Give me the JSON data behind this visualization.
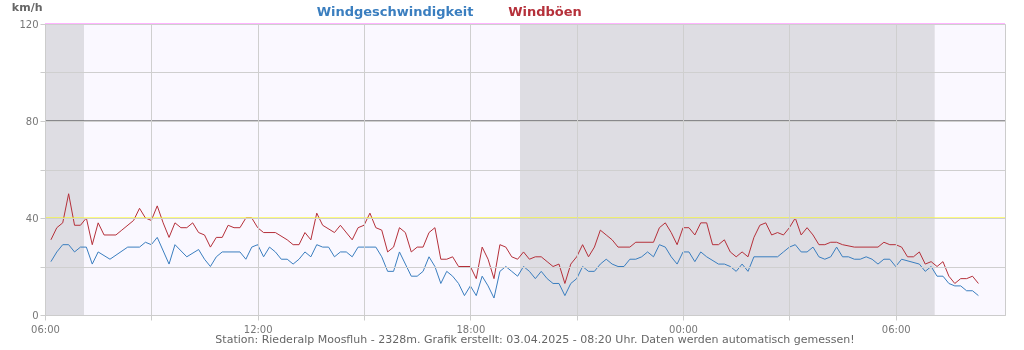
{
  "chart_data": {
    "type": "line",
    "ylabel": "km/h",
    "legend": "top",
    "annotations": [
      "Station: Riederalp Moosfluh - 2328m. Grafik erstellt: 03.04.2025 - 08:20 Uhr. Daten werden automatisch gemessen!"
    ],
    "xlim": [
      "2025-04-02T06:00",
      "2025-04-03T09:05"
    ],
    "xticks": [
      {
        "value": "2025-04-02T06:00",
        "label": "06:00"
      },
      {
        "value": "2025-04-02T09:00",
        "label": null
      },
      {
        "value": "2025-04-02T12:00",
        "label": "12:00"
      },
      {
        "value": "2025-04-02T15:00",
        "label": null
      },
      {
        "value": "2025-04-02T18:00",
        "label": "18:00"
      },
      {
        "value": "2025-04-02T21:00",
        "label": null
      },
      {
        "value": "2025-04-03T00:00",
        "label": "00:00"
      },
      {
        "value": "2025-04-03T03:00",
        "label": null
      },
      {
        "value": "2025-04-03T06:00",
        "label": "06:00"
      }
    ],
    "ylim": [
      0,
      120
    ],
    "yticks": [
      0,
      {
        "value": 20,
        "label": null
      },
      40,
      {
        "value": 60,
        "label": null
      },
      80,
      {
        "value": 100,
        "label": null
      },
      120
    ],
    "grid": true,
    "ref_lines": [
      {
        "axis": "y",
        "value": 80,
        "color": "#333333"
      },
      {
        "axis": "y",
        "value": 40,
        "color": "#ffff00"
      },
      {
        "axis": "y",
        "value": 120,
        "color": "#ff66ff"
      }
    ],
    "bands": [
      {
        "axis": "x",
        "from": "2025-04-02T06:00",
        "to": "2025-04-02T07:06",
        "color": "#dedde3"
      },
      {
        "axis": "x",
        "from": "2025-04-02T19:24",
        "to": "2025-04-03T07:06",
        "color": "#dedde3"
      }
    ],
    "series": [
      {
        "name": "Windgeschwindigkeit",
        "color": "#3a7ebf",
        "x": [
          "2025-04-02T06:10",
          "2025-04-02T06:20",
          "2025-04-02T06:30",
          "2025-04-02T06:40",
          "2025-04-02T06:50",
          "2025-04-02T07:00",
          "2025-04-02T07:10",
          "2025-04-02T07:20",
          "2025-04-02T07:30",
          "2025-04-02T07:50",
          "2025-04-02T08:20",
          "2025-04-02T08:40",
          "2025-04-02T08:50",
          "2025-04-02T09:00",
          "2025-04-02T09:10",
          "2025-04-02T09:30",
          "2025-04-02T09:40",
          "2025-04-02T10:00",
          "2025-04-02T10:20",
          "2025-04-02T10:30",
          "2025-04-02T10:40",
          "2025-04-02T10:50",
          "2025-04-02T11:00",
          "2025-04-02T11:30",
          "2025-04-02T11:40",
          "2025-04-02T11:50",
          "2025-04-02T12:00",
          "2025-04-02T12:10",
          "2025-04-02T12:20",
          "2025-04-02T12:30",
          "2025-04-02T12:40",
          "2025-04-02T12:50",
          "2025-04-02T13:00",
          "2025-04-02T13:10",
          "2025-04-02T13:20",
          "2025-04-02T13:30",
          "2025-04-02T13:40",
          "2025-04-02T13:50",
          "2025-04-02T14:00",
          "2025-04-02T14:10",
          "2025-04-02T14:20",
          "2025-04-02T14:30",
          "2025-04-02T14:40",
          "2025-04-02T14:50",
          "2025-04-02T15:10",
          "2025-04-02T15:20",
          "2025-04-02T15:30",
          "2025-04-02T15:40",
          "2025-04-02T15:50",
          "2025-04-02T16:00",
          "2025-04-02T16:10",
          "2025-04-02T16:20",
          "2025-04-02T16:30",
          "2025-04-02T16:40",
          "2025-04-02T16:50",
          "2025-04-02T17:00",
          "2025-04-02T17:10",
          "2025-04-02T17:20",
          "2025-04-02T17:30",
          "2025-04-02T17:40",
          "2025-04-02T17:50",
          "2025-04-02T18:00",
          "2025-04-02T18:10",
          "2025-04-02T18:20",
          "2025-04-02T18:30",
          "2025-04-02T18:40",
          "2025-04-02T18:50",
          "2025-04-02T19:00",
          "2025-04-02T19:10",
          "2025-04-02T19:20",
          "2025-04-02T19:30",
          "2025-04-02T19:40",
          "2025-04-02T19:50",
          "2025-04-02T20:00",
          "2025-04-02T20:10",
          "2025-04-02T20:20",
          "2025-04-02T20:30",
          "2025-04-02T20:40",
          "2025-04-02T20:50",
          "2025-04-02T21:00",
          "2025-04-02T21:10",
          "2025-04-02T21:20",
          "2025-04-02T21:30",
          "2025-04-02T21:40",
          "2025-04-02T21:50",
          "2025-04-02T22:00",
          "2025-04-02T22:10",
          "2025-04-02T22:20",
          "2025-04-02T22:30",
          "2025-04-02T22:40",
          "2025-04-02T22:50",
          "2025-04-02T23:00",
          "2025-04-02T23:10",
          "2025-04-02T23:20",
          "2025-04-02T23:30",
          "2025-04-02T23:40",
          "2025-04-02T23:50",
          "2025-04-03T00:00",
          "2025-04-03T00:10",
          "2025-04-03T00:20",
          "2025-04-03T00:30",
          "2025-04-03T00:40",
          "2025-04-03T01:00",
          "2025-04-03T01:10",
          "2025-04-03T01:20",
          "2025-04-03T01:30",
          "2025-04-03T01:40",
          "2025-04-03T01:50",
          "2025-04-03T02:00",
          "2025-04-03T02:40",
          "2025-04-03T02:50",
          "2025-04-03T03:00",
          "2025-04-03T03:10",
          "2025-04-03T03:20",
          "2025-04-03T03:30",
          "2025-04-03T03:40",
          "2025-04-03T03:50",
          "2025-04-03T04:00",
          "2025-04-03T04:10",
          "2025-04-03T04:20",
          "2025-04-03T04:30",
          "2025-04-03T04:40",
          "2025-04-03T04:50",
          "2025-04-03T05:00",
          "2025-04-03T05:10",
          "2025-04-03T05:20",
          "2025-04-03T05:30",
          "2025-04-03T05:40",
          "2025-04-03T05:50",
          "2025-04-03T06:00",
          "2025-04-03T06:10",
          "2025-04-03T06:40",
          "2025-04-03T06:50",
          "2025-04-03T07:00",
          "2025-04-03T07:10",
          "2025-04-03T07:20",
          "2025-04-03T07:30",
          "2025-04-03T07:40",
          "2025-04-03T07:50",
          "2025-04-03T08:00",
          "2025-04-03T08:10",
          "2025-04-03T08:20"
        ],
        "values": [
          22,
          26,
          29,
          29,
          26,
          28,
          28,
          21,
          26,
          23,
          28,
          28,
          30,
          29,
          32,
          21,
          29,
          24,
          27,
          23,
          20,
          24,
          26,
          26,
          23,
          28,
          29,
          24,
          28,
          26,
          23,
          23,
          21,
          23,
          26,
          24,
          29,
          28,
          28,
          24,
          26,
          26,
          24,
          28,
          28,
          28,
          24,
          18,
          18,
          26,
          21,
          16,
          16,
          18,
          24,
          20,
          13,
          18,
          16,
          13,
          8,
          12,
          8,
          16,
          12,
          7,
          18,
          20,
          18,
          16,
          20,
          18,
          15,
          18,
          15,
          13,
          13,
          8,
          13,
          15,
          20,
          18,
          18,
          21,
          23,
          21,
          20,
          20,
          23,
          23,
          24,
          26,
          24,
          29,
          28,
          24,
          21,
          26,
          26,
          22,
          26,
          24,
          21,
          21,
          20,
          18,
          21,
          18,
          24,
          24,
          26,
          28,
          29,
          26,
          26,
          28,
          24,
          23,
          24,
          28,
          24,
          24,
          23,
          23,
          24,
          23,
          21,
          23,
          23,
          20,
          23,
          21,
          18,
          20,
          16,
          16,
          13,
          12,
          12,
          10,
          10,
          8
        ]
      },
      {
        "name": "Windböen",
        "color": "#b5303a",
        "x": [
          "2025-04-02T06:10",
          "2025-04-02T06:20",
          "2025-04-02T06:30",
          "2025-04-02T06:40",
          "2025-04-02T06:50",
          "2025-04-02T07:00",
          "2025-04-02T07:10",
          "2025-04-02T07:20",
          "2025-04-02T07:30",
          "2025-04-02T07:40",
          "2025-04-02T08:00",
          "2025-04-02T08:10",
          "2025-04-02T08:30",
          "2025-04-02T08:40",
          "2025-04-02T08:50",
          "2025-04-02T09:00",
          "2025-04-02T09:10",
          "2025-04-02T09:20",
          "2025-04-02T09:30",
          "2025-04-02T09:40",
          "2025-04-02T09:50",
          "2025-04-02T10:00",
          "2025-04-02T10:10",
          "2025-04-02T10:20",
          "2025-04-02T10:30",
          "2025-04-02T10:40",
          "2025-04-02T10:50",
          "2025-04-02T11:00",
          "2025-04-02T11:10",
          "2025-04-02T11:20",
          "2025-04-02T11:30",
          "2025-04-02T11:40",
          "2025-04-02T11:50",
          "2025-04-02T12:00",
          "2025-04-02T12:10",
          "2025-04-02T12:30",
          "2025-04-02T12:50",
          "2025-04-02T13:00",
          "2025-04-02T13:10",
          "2025-04-02T13:20",
          "2025-04-02T13:30",
          "2025-04-02T13:40",
          "2025-04-02T13:50",
          "2025-04-02T14:10",
          "2025-04-02T14:20",
          "2025-04-02T14:40",
          "2025-04-02T14:50",
          "2025-04-02T15:00",
          "2025-04-02T15:10",
          "2025-04-02T15:20",
          "2025-04-02T15:30",
          "2025-04-02T15:40",
          "2025-04-02T15:50",
          "2025-04-02T16:00",
          "2025-04-02T16:10",
          "2025-04-02T16:20",
          "2025-04-02T16:30",
          "2025-04-02T16:40",
          "2025-04-02T16:50",
          "2025-04-02T17:00",
          "2025-04-02T17:10",
          "2025-04-02T17:20",
          "2025-04-02T17:30",
          "2025-04-02T17:40",
          "2025-04-02T18:00",
          "2025-04-02T18:10",
          "2025-04-02T18:20",
          "2025-04-02T18:30",
          "2025-04-02T18:40",
          "2025-04-02T18:50",
          "2025-04-02T19:00",
          "2025-04-02T19:10",
          "2025-04-02T19:20",
          "2025-04-02T19:30",
          "2025-04-02T19:40",
          "2025-04-02T19:50",
          "2025-04-02T20:00",
          "2025-04-02T20:10",
          "2025-04-02T20:20",
          "2025-04-02T20:30",
          "2025-04-02T20:40",
          "2025-04-02T20:50",
          "2025-04-02T21:00",
          "2025-04-02T21:10",
          "2025-04-02T21:20",
          "2025-04-02T21:30",
          "2025-04-02T21:40",
          "2025-04-02T21:50",
          "2025-04-02T22:00",
          "2025-04-02T22:10",
          "2025-04-02T22:30",
          "2025-04-02T22:40",
          "2025-04-02T23:10",
          "2025-04-02T23:20",
          "2025-04-02T23:30",
          "2025-04-02T23:40",
          "2025-04-02T23:50",
          "2025-04-03T00:00",
          "2025-04-03T00:10",
          "2025-04-03T00:20",
          "2025-04-03T00:30",
          "2025-04-03T00:40",
          "2025-04-03T00:50",
          "2025-04-03T01:00",
          "2025-04-03T01:10",
          "2025-04-03T01:20",
          "2025-04-03T01:30",
          "2025-04-03T01:40",
          "2025-04-03T01:50",
          "2025-04-03T02:00",
          "2025-04-03T02:10",
          "2025-04-03T02:20",
          "2025-04-03T02:30",
          "2025-04-03T02:40",
          "2025-04-03T02:50",
          "2025-04-03T03:00",
          "2025-04-03T03:10",
          "2025-04-03T03:20",
          "2025-04-03T03:30",
          "2025-04-03T03:40",
          "2025-04-03T03:50",
          "2025-04-03T04:00",
          "2025-04-03T04:10",
          "2025-04-03T04:20",
          "2025-04-03T04:30",
          "2025-04-03T04:50",
          "2025-04-03T05:30",
          "2025-04-03T05:40",
          "2025-04-03T05:50",
          "2025-04-03T06:00",
          "2025-04-03T06:10",
          "2025-04-03T06:20",
          "2025-04-03T06:30",
          "2025-04-03T06:40",
          "2025-04-03T06:50",
          "2025-04-03T07:00",
          "2025-04-03T07:10",
          "2025-04-03T07:20",
          "2025-04-03T07:30",
          "2025-04-03T07:40",
          "2025-04-03T07:50",
          "2025-04-03T08:00",
          "2025-04-03T08:10",
          "2025-04-03T08:20"
        ],
        "values": [
          31,
          36,
          38,
          50,
          37,
          37,
          40,
          29,
          38,
          33,
          33,
          35,
          39,
          44,
          40,
          39,
          45,
          38,
          32,
          38,
          36,
          36,
          38,
          34,
          33,
          28,
          32,
          32,
          37,
          36,
          36,
          40,
          40,
          36,
          34,
          34,
          31,
          29,
          29,
          34,
          31,
          42,
          37,
          34,
          37,
          31,
          36,
          37,
          42,
          36,
          35,
          26,
          28,
          36,
          34,
          26,
          28,
          28,
          34,
          36,
          23,
          23,
          24,
          20,
          20,
          15,
          28,
          23,
          15,
          29,
          28,
          24,
          23,
          26,
          23,
          24,
          24,
          22,
          20,
          21,
          13,
          21,
          24,
          29,
          24,
          28,
          35,
          33,
          31,
          28,
          28,
          30,
          30,
          36,
          38,
          34,
          29,
          36,
          36,
          33,
          38,
          38,
          29,
          29,
          31,
          26,
          24,
          26,
          24,
          32,
          37,
          38,
          33,
          34,
          33,
          36,
          40,
          33,
          36,
          33,
          29,
          29,
          30,
          30,
          29,
          28,
          28,
          30,
          29,
          29,
          28,
          24,
          24,
          26,
          21,
          22,
          20,
          22,
          16,
          13,
          15,
          15,
          16,
          13
        ]
      }
    ]
  }
}
